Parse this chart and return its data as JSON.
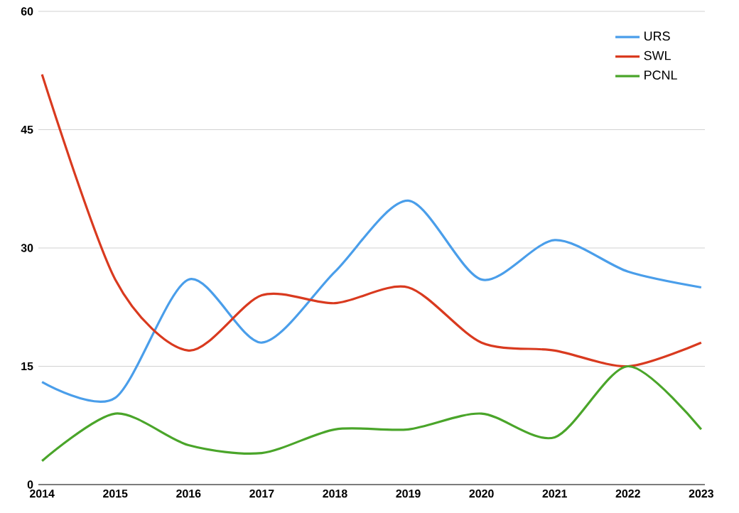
{
  "chart_data": {
    "type": "line",
    "categories": [
      "2014",
      "2015",
      "2016",
      "2017",
      "2018",
      "2019",
      "2020",
      "2021",
      "2022",
      "2023"
    ],
    "series": [
      {
        "name": "URS",
        "color": "#4a9eea",
        "values": [
          13,
          11,
          26,
          18,
          27,
          36,
          26,
          31,
          27,
          25
        ]
      },
      {
        "name": "SWL",
        "color": "#d93a1f",
        "values": [
          52,
          26,
          17,
          24,
          23,
          25,
          18,
          17,
          15,
          18
        ]
      },
      {
        "name": "PCNL",
        "color": "#4aa52a",
        "values": [
          3,
          9,
          5,
          4,
          7,
          7,
          9,
          6,
          15,
          7
        ]
      }
    ],
    "ylim": [
      0,
      60
    ],
    "yticks": [
      0,
      15,
      30,
      45,
      60
    ],
    "grid": "y",
    "legend": "top right",
    "marker": "none",
    "line_style": "solid"
  }
}
